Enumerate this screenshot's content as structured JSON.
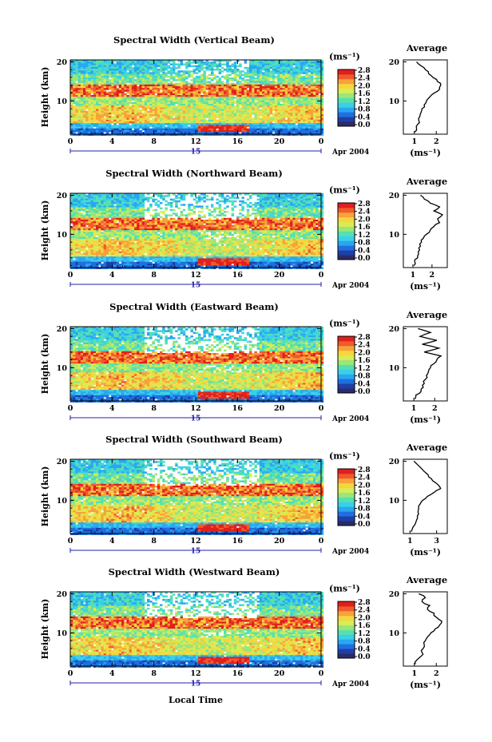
{
  "figure": {
    "date_text": "Apr 2004",
    "day_text": "15",
    "xlabel": "Local Time",
    "ylabel": "Height (km)",
    "colorbar_unit": "(ms⁻¹)",
    "average_title": "Average",
    "average_xlabel": "(ms⁻¹)"
  },
  "colors": {
    "scale": [
      "#2b2b6b",
      "#1f3fa8",
      "#1f6fe0",
      "#2aa6f0",
      "#39d0e8",
      "#55e0b0",
      "#9ae67a",
      "#d8ec55",
      "#f6d53f",
      "#f7a23a",
      "#f05a2c",
      "#e0201c"
    ]
  },
  "chart_data": [
    {
      "type": "heatmap",
      "title": "Spectral Width (Vertical Beam)",
      "x_ticks": [
        "0",
        "4",
        "8",
        "12",
        "16",
        "20",
        "0"
      ],
      "xlim": [
        0,
        24
      ],
      "y_ticks": [
        "20",
        "10"
      ],
      "ylim": [
        1.5,
        20.5
      ],
      "colorbar_ticks": [
        "2.8",
        "2.4",
        "2.0",
        "1.6",
        "1.2",
        "0.8",
        "0.4",
        "0.0"
      ],
      "colorbar_range": [
        0.0,
        2.8
      ],
      "average": {
        "xlim": [
          0.5,
          2.5
        ],
        "x_ticks": [
          "1",
          "2"
        ],
        "height": [
          2,
          3,
          4,
          5,
          6,
          7,
          8,
          9,
          10,
          11,
          12,
          13,
          14,
          15,
          16,
          17,
          18,
          19,
          20
        ],
        "width": [
          1.0,
          1.1,
          1.15,
          1.2,
          1.25,
          1.3,
          1.35,
          1.45,
          1.55,
          1.7,
          1.9,
          2.15,
          2.2,
          2.05,
          1.85,
          1.65,
          1.5,
          1.3,
          1.1
        ]
      }
    },
    {
      "type": "heatmap",
      "title": "Spectral Width (Northward Beam)",
      "x_ticks": [
        "0",
        "4",
        "8",
        "12",
        "16",
        "20",
        "0"
      ],
      "xlim": [
        0,
        24
      ],
      "y_ticks": [
        "20",
        "10"
      ],
      "ylim": [
        1.5,
        20.5
      ],
      "colorbar_ticks": [
        "2.8",
        "2.4",
        "2.0",
        "1.6",
        "1.2",
        "0.8",
        "0.4",
        "0.0"
      ],
      "colorbar_range": [
        0.0,
        2.8
      ],
      "average": {
        "xlim": [
          0.5,
          2.8
        ],
        "x_ticks": [
          "1",
          "2"
        ],
        "height": [
          2,
          3,
          4,
          5,
          6,
          7,
          8,
          9,
          10,
          11,
          12,
          13,
          14,
          15,
          16,
          17,
          18,
          19,
          20
        ],
        "width": [
          1.05,
          1.1,
          1.25,
          1.3,
          1.35,
          1.4,
          1.45,
          1.55,
          1.7,
          1.9,
          2.1,
          2.4,
          2.3,
          2.55,
          2.1,
          2.4,
          1.9,
          1.6,
          1.4
        ]
      }
    },
    {
      "type": "heatmap",
      "title": "Spectral Width (Eastward Beam)",
      "x_ticks": [
        "0",
        "4",
        "8",
        "12",
        "16",
        "20",
        "0"
      ],
      "xlim": [
        0,
        24
      ],
      "y_ticks": [
        "20",
        "10"
      ],
      "ylim": [
        1.5,
        20.5
      ],
      "colorbar_ticks": [
        "2.8",
        "2.4",
        "2.0",
        "1.6",
        "1.2",
        "0.8",
        "0.4",
        "0.0"
      ],
      "colorbar_range": [
        0.0,
        2.8
      ],
      "average": {
        "xlim": [
          0.5,
          2.6
        ],
        "x_ticks": [
          "1",
          "2"
        ],
        "height": [
          2,
          3,
          4,
          5,
          6,
          7,
          8,
          9,
          10,
          11,
          12,
          13,
          14,
          15,
          16,
          17,
          18,
          19,
          20
        ],
        "width": [
          1.05,
          1.1,
          1.35,
          1.45,
          1.5,
          1.55,
          1.6,
          1.7,
          1.8,
          1.95,
          2.1,
          2.3,
          1.5,
          2.2,
          1.4,
          2.1,
          1.3,
          1.8,
          1.2
        ]
      }
    },
    {
      "type": "heatmap",
      "title": "Spectral Width (Southward Beam)",
      "x_ticks": [
        "0",
        "4",
        "8",
        "12",
        "16",
        "20",
        "0"
      ],
      "xlim": [
        0,
        24
      ],
      "y_ticks": [
        "20",
        "10"
      ],
      "ylim": [
        1.5,
        20.5
      ],
      "colorbar_ticks": [
        "2.8",
        "2.4",
        "2.0",
        "1.6",
        "1.2",
        "0.8",
        "0.4",
        "0.0"
      ],
      "colorbar_range": [
        0.0,
        2.8
      ],
      "average": {
        "xlim": [
          0.5,
          3.8
        ],
        "x_ticks": [
          "1",
          "3"
        ],
        "height": [
          2,
          3,
          4,
          5,
          6,
          7,
          8,
          9,
          10,
          11,
          12,
          13,
          14,
          15,
          16,
          17,
          18,
          19,
          20
        ],
        "width": [
          1.1,
          1.2,
          1.4,
          1.5,
          1.55,
          1.6,
          1.65,
          1.75,
          1.95,
          2.3,
          2.8,
          3.3,
          3.1,
          2.7,
          2.4,
          2.2,
          1.9,
          1.6,
          1.3
        ]
      }
    },
    {
      "type": "heatmap",
      "title": "Spectral Width (Westward Beam)",
      "x_ticks": [
        "0",
        "4",
        "8",
        "12",
        "16",
        "20",
        "0"
      ],
      "xlim": [
        0,
        24
      ],
      "y_ticks": [
        "20",
        "10"
      ],
      "ylim": [
        1.5,
        20.5
      ],
      "colorbar_ticks": [
        "2.8",
        "2.4",
        "2.0",
        "1.6",
        "1.2",
        "0.8",
        "0.4",
        "0.0"
      ],
      "colorbar_range": [
        0.0,
        2.8
      ],
      "average": {
        "xlim": [
          0.5,
          2.5
        ],
        "x_ticks": [
          "1",
          "2"
        ],
        "height": [
          2,
          3,
          4,
          5,
          6,
          7,
          8,
          9,
          10,
          11,
          12,
          13,
          14,
          15,
          16,
          17,
          18,
          19,
          20
        ],
        "width": [
          1.05,
          1.1,
          1.3,
          1.35,
          1.4,
          1.45,
          1.5,
          1.6,
          1.75,
          1.95,
          2.15,
          2.25,
          2.0,
          1.9,
          1.6,
          1.7,
          1.35,
          1.5,
          1.2
        ]
      }
    }
  ]
}
